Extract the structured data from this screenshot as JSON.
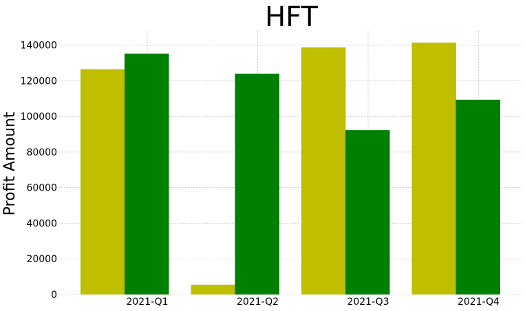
{
  "chart_data": {
    "type": "bar",
    "title": "HFT",
    "xlabel": "",
    "ylabel": "Profit Amount",
    "categories": [
      "2021-Q1",
      "2021-Q2",
      "2021-Q3",
      "2021-Q4"
    ],
    "series": [
      {
        "values": [
          126500,
          5500,
          138800,
          141500
        ],
        "color": "#bfbf00"
      },
      {
        "values": [
          135300,
          124000,
          92300,
          109400
        ],
        "color": "#008000"
      }
    ],
    "ylim": [
      0,
      148000
    ],
    "yticks": [
      0,
      20000,
      40000,
      60000,
      80000,
      100000,
      120000,
      140000
    ],
    "grid": true,
    "legend": "none"
  }
}
